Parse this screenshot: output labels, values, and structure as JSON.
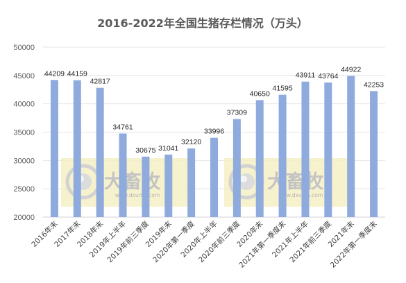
{
  "chart_data": {
    "type": "bar",
    "title": "2016-2022年全国生猪存栏情况（万头）",
    "categories": [
      "2016年末",
      "2017年末",
      "2018年末",
      "2019年上半年",
      "2019年前三季度",
      "2019年末",
      "2020年第一季度",
      "2020年上半年",
      "2020年前三季度",
      "2020年末",
      "2021年第一季度末",
      "2021年上半年",
      "2021年前三季度",
      "2021年末",
      "2022年第一季度末"
    ],
    "values": [
      44209,
      44159,
      42817,
      34761,
      30675,
      31041,
      32120,
      33996,
      37309,
      40650,
      41595,
      43911,
      43764,
      44922,
      42253
    ],
    "ylim": [
      20000,
      50000
    ],
    "yticks": [
      20000,
      25000,
      30000,
      35000,
      40000,
      45000,
      50000
    ],
    "grid": true,
    "bar_color": "#8faadc"
  },
  "watermark": {
    "brand": "大畜牧",
    "url": "www.dxumu.com",
    "band_color": "#f5f0c4",
    "logo_color": "#d2d2d2"
  }
}
